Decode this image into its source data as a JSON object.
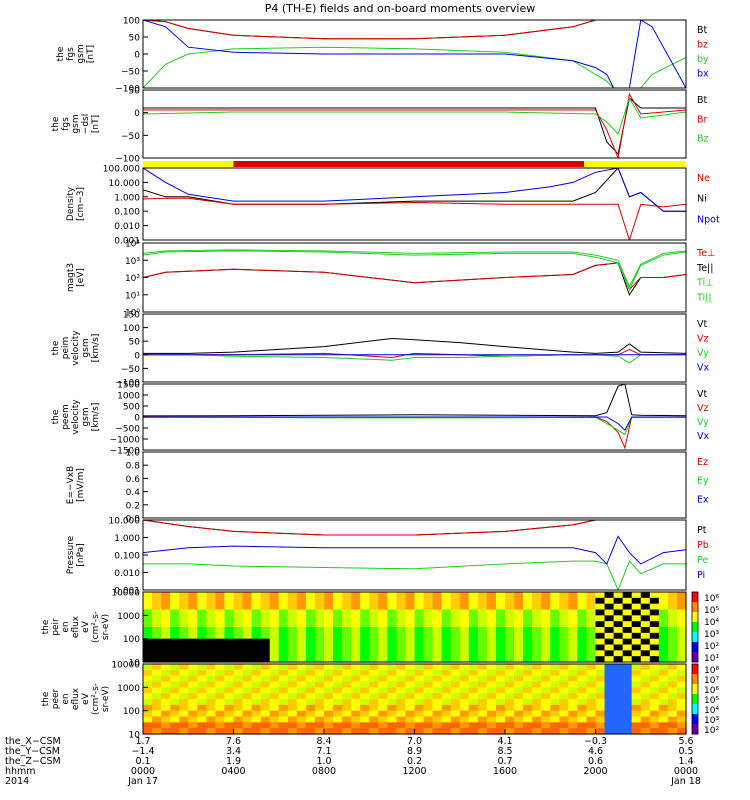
{
  "page": {
    "title": "P4 (TH-E) fields and on-board moments overview"
  },
  "colors": {
    "black": "#000000",
    "red": "#d40000",
    "green": "#22cc22",
    "blue": "#0000dd",
    "yellow": "#ffff00"
  },
  "chart_data": [
    {
      "id": "fgs",
      "type": "line",
      "ylabel_lines": [
        "the",
        "fgs",
        "gsm",
        "[nT]"
      ],
      "ylim": [
        -100,
        100
      ],
      "y_ticks": [
        "100",
        "50",
        "0",
        "−50",
        "−100"
      ],
      "legend": [
        {
          "name": "Bt",
          "color": "#000000"
        },
        {
          "name": "bz",
          "color": "#d40000"
        },
        {
          "name": "by",
          "color": "#22cc22"
        },
        {
          "name": "bx",
          "color": "#0000dd"
        }
      ],
      "x_hours": [
        0,
        1,
        2,
        4,
        8,
        12,
        16,
        19,
        20,
        20.5,
        20.8,
        21,
        21.3,
        21.5,
        22,
        22.5,
        24
      ],
      "series": [
        {
          "name": "Bt",
          "values": [
            100,
            95,
            75,
            55,
            45,
            45,
            55,
            80,
            100,
            100,
            100,
            100,
            100,
            100,
            100,
            100,
            100
          ]
        },
        {
          "name": "bz",
          "values": [
            100,
            95,
            75,
            55,
            45,
            45,
            55,
            80,
            100,
            100,
            100,
            100,
            100,
            100,
            100,
            100,
            100
          ]
        },
        {
          "name": "by",
          "values": [
            -100,
            -30,
            0,
            15,
            20,
            15,
            5,
            -20,
            -60,
            -80,
            -100,
            -100,
            -100,
            -100,
            -100,
            -60,
            -10
          ]
        },
        {
          "name": "bx",
          "values": [
            100,
            80,
            20,
            5,
            0,
            0,
            0,
            -20,
            -40,
            -60,
            -100,
            -100,
            -100,
            -100,
            100,
            80,
            -100
          ]
        }
      ]
    },
    {
      "id": "fgs_dsl",
      "type": "line",
      "ylabel_lines": [
        "the",
        "fgs",
        "gsm",
        "−dsl",
        "[nT]"
      ],
      "ylim": [
        -120,
        50
      ],
      "y_ticks": [
        "50",
        "0",
        "−50",
        "−100"
      ],
      "legend": [
        {
          "name": "Bt",
          "color": "#000000"
        },
        {
          "name": "Br",
          "color": "#d40000"
        },
        {
          "name": "Bz",
          "color": "#22cc22"
        }
      ],
      "x_hours": [
        0,
        4,
        8,
        12,
        16,
        20,
        20.5,
        21,
        21.5,
        22,
        24
      ],
      "series": [
        {
          "name": "Bt",
          "values": [
            5,
            5,
            5,
            5,
            5,
            5,
            -80,
            -110,
            30,
            5,
            5
          ]
        },
        {
          "name": "Br",
          "values": [
            0,
            0,
            0,
            0,
            0,
            0,
            -50,
            -120,
            40,
            -10,
            0
          ]
        },
        {
          "name": "Bz",
          "values": [
            -10,
            -5,
            -5,
            -5,
            -5,
            -10,
            -30,
            -60,
            30,
            -20,
            -5
          ]
        }
      ]
    },
    {
      "id": "density",
      "type": "line",
      "ylabel_lines": [
        "Density",
        "[cm−3]"
      ],
      "log": true,
      "ylim": [
        0.001,
        100
      ],
      "y_ticks": [
        "100.000",
        "10.000",
        "1.000",
        "0.100",
        "0.010",
        "0.001"
      ],
      "legend": [
        {
          "name": "Ne",
          "color": "#d40000"
        },
        {
          "name": "Ni",
          "color": "#000000"
        },
        {
          "name": "Npot",
          "color": "#0000dd"
        }
      ],
      "x_hours": [
        0,
        1,
        2,
        4,
        8,
        12,
        16,
        18,
        19,
        20,
        21,
        21.5,
        22,
        23,
        24
      ],
      "series": [
        {
          "name": "Ni",
          "values": [
            3,
            1,
            1,
            0.3,
            0.3,
            0.5,
            0.5,
            0.5,
            0.5,
            2,
            100,
            1,
            2,
            0.1,
            0.1
          ]
        },
        {
          "name": "Ne",
          "values": [
            0.7,
            0.8,
            0.8,
            0.3,
            0.3,
            0.4,
            0.3,
            0.3,
            0.3,
            0.3,
            0.3,
            0.001,
            0.3,
            0.2,
            0.3
          ]
        },
        {
          "name": "Npot",
          "values": [
            100,
            10,
            1.5,
            0.5,
            0.5,
            1,
            2,
            5,
            10,
            50,
            100,
            1,
            2,
            0.1,
            0.1
          ]
        }
      ]
    },
    {
      "id": "temperature",
      "type": "line",
      "ylabel_lines": [
        "magt3",
        "[eV]"
      ],
      "log": true,
      "ylim": [
        1,
        10000
      ],
      "y_ticks": [
        "10⁴",
        "10³",
        "10²",
        "10¹",
        "10⁰"
      ],
      "legend": [
        {
          "name": "Te⊥",
          "color": "#d40000"
        },
        {
          "name": "Te||",
          "color": "#000000"
        },
        {
          "name": "Ti⊥",
          "color": "#22cc22"
        },
        {
          "name": "Ti||",
          "color": "#22cc22"
        }
      ],
      "x_hours": [
        0,
        1,
        4,
        8,
        12,
        16,
        19,
        20,
        21,
        21.5,
        22,
        23,
        24
      ],
      "series": [
        {
          "name": "Te||",
          "values": [
            100,
            200,
            300,
            200,
            50,
            100,
            150,
            500,
            700,
            10,
            100,
            100,
            150
          ]
        },
        {
          "name": "Te⊥",
          "values": [
            100,
            200,
            300,
            200,
            50,
            100,
            150,
            500,
            700,
            20,
            100,
            100,
            150
          ]
        },
        {
          "name": "Ti⊥",
          "values": [
            2000,
            3000,
            3500,
            3000,
            2000,
            2500,
            2500,
            1500,
            700,
            20,
            500,
            2000,
            3000
          ]
        },
        {
          "name": "Ti||",
          "values": [
            2500,
            3500,
            4000,
            3500,
            2500,
            3000,
            3000,
            2000,
            1000,
            30,
            600,
            2500,
            3500
          ]
        }
      ]
    },
    {
      "id": "peim_velocity",
      "type": "line",
      "ylabel_lines": [
        "the",
        "peim",
        "velocity",
        "gsm",
        "[km/s]"
      ],
      "ylim": [
        -100,
        150
      ],
      "y_ticks": [
        "150",
        "100",
        "50",
        "0",
        "−50",
        "−100"
      ],
      "legend": [
        {
          "name": "Vt",
          "color": "#000000"
        },
        {
          "name": "Vz",
          "color": "#d40000"
        },
        {
          "name": "Vy",
          "color": "#22cc22"
        },
        {
          "name": "Vx",
          "color": "#0000dd"
        }
      ],
      "x_hours": [
        0,
        2,
        4,
        8,
        11,
        12,
        14,
        16,
        19,
        20,
        21,
        21.5,
        22,
        24
      ],
      "series": [
        {
          "name": "Vt",
          "values": [
            5,
            5,
            10,
            30,
            60,
            55,
            45,
            30,
            10,
            5,
            10,
            40,
            10,
            5
          ]
        },
        {
          "name": "Vz",
          "values": [
            0,
            0,
            0,
            5,
            -10,
            5,
            0,
            -5,
            0,
            0,
            0,
            20,
            0,
            0
          ]
        },
        {
          "name": "Vy",
          "values": [
            0,
            0,
            -5,
            -10,
            -20,
            -10,
            -10,
            -5,
            0,
            0,
            -5,
            -30,
            0,
            0
          ]
        },
        {
          "name": "Vx",
          "values": [
            0,
            0,
            0,
            0,
            0,
            0,
            0,
            0,
            0,
            0,
            0,
            0,
            0,
            0
          ]
        }
      ]
    },
    {
      "id": "peem_velocity",
      "type": "line",
      "ylabel_lines": [
        "the",
        "peem",
        "velocity",
        "gsm",
        "[km/s]"
      ],
      "ylim": [
        -1500,
        1500
      ],
      "y_ticks": [
        "1500",
        "1000",
        "500",
        "0",
        "−500",
        "−1000",
        "−1500"
      ],
      "legend": [
        {
          "name": "Vt",
          "color": "#000000"
        },
        {
          "name": "Vz",
          "color": "#d40000"
        },
        {
          "name": "Vy",
          "color": "#22cc22"
        },
        {
          "name": "Vx",
          "color": "#0000dd"
        }
      ],
      "x_hours": [
        0,
        4,
        8,
        12,
        16,
        20,
        20.5,
        21,
        21.3,
        21.6,
        22,
        24
      ],
      "series": [
        {
          "name": "Vt",
          "values": [
            50,
            60,
            80,
            100,
            80,
            60,
            200,
            1400,
            1500,
            100,
            80,
            60
          ]
        },
        {
          "name": "Vz",
          "values": [
            0,
            0,
            0,
            0,
            0,
            0,
            -200,
            -700,
            -1400,
            0,
            0,
            0
          ]
        },
        {
          "name": "Vy",
          "values": [
            -20,
            -20,
            -30,
            -40,
            -30,
            -20,
            -300,
            -600,
            -800,
            -20,
            -20,
            -20
          ]
        },
        {
          "name": "Vx",
          "values": [
            0,
            0,
            0,
            0,
            0,
            0,
            0,
            -300,
            -600,
            0,
            0,
            0
          ]
        }
      ]
    },
    {
      "id": "efield",
      "type": "line",
      "ylabel_lines": [
        "E=−VxB",
        "[mV/m]"
      ],
      "ylim": [
        0,
        1
      ],
      "y_ticks": [
        "1.0",
        "0.8",
        "0.6",
        "0.4",
        "0.2",
        "0.0"
      ],
      "legend": [
        {
          "name": "Ez",
          "color": "#d40000"
        },
        {
          "name": "Ey",
          "color": "#22cc22"
        },
        {
          "name": "Ex",
          "color": "#0000dd"
        }
      ],
      "series": []
    },
    {
      "id": "pressure",
      "type": "line",
      "ylabel_lines": [
        "Pressure",
        "[nPa]"
      ],
      "log": true,
      "ylim": [
        0.0005,
        10
      ],
      "y_ticks": [
        "10.000",
        "1.000",
        "0.100",
        "0.010",
        "0.001"
      ],
      "legend": [
        {
          "name": "Pt",
          "color": "#000000"
        },
        {
          "name": "Pb",
          "color": "#d40000"
        },
        {
          "name": "Pe",
          "color": "#22cc22"
        },
        {
          "name": "Pi",
          "color": "#0000dd"
        }
      ],
      "x_hours": [
        0,
        2,
        4,
        8,
        12,
        16,
        19,
        20,
        20.5,
        21,
        21.5,
        22,
        23,
        24
      ],
      "series": [
        {
          "name": "Pt",
          "values": [
            10,
            4,
            2,
            1.2,
            1.2,
            2,
            5,
            10,
            10,
            10,
            10,
            10,
            10,
            10
          ]
        },
        {
          "name": "Pb",
          "values": [
            10,
            4,
            2,
            1.2,
            1.2,
            2,
            5,
            10,
            10,
            10,
            10,
            10,
            10,
            10
          ]
        },
        {
          "name": "Pe",
          "values": [
            0.02,
            0.02,
            0.015,
            0.012,
            0.01,
            0.02,
            0.03,
            0.03,
            0.02,
            0.0005,
            0.03,
            0.005,
            0.02,
            0.02
          ]
        },
        {
          "name": "Pi",
          "values": [
            0.1,
            0.2,
            0.25,
            0.2,
            0.2,
            0.2,
            0.2,
            0.1,
            0.02,
            1,
            0.1,
            0.02,
            0.1,
            0.15
          ]
        }
      ]
    },
    {
      "id": "peir_spec",
      "type": "heatmap",
      "ylabel_lines": [
        "the",
        "peir",
        "en",
        "eflux",
        "eV",
        "(cm²-s-",
        "sr-eV)"
      ],
      "y_ticks": [
        "10000",
        "1000",
        "100",
        "10"
      ],
      "colorbar_ticks": [
        "10⁶",
        "10⁵",
        "10⁴",
        "10³",
        "10²",
        "10¹"
      ]
    },
    {
      "id": "peer_spec",
      "type": "heatmap",
      "ylabel_lines": [
        "the",
        "peer",
        "en",
        "eflux",
        "eV",
        "(cm²-s-",
        "sr-eV)"
      ],
      "y_ticks": [
        "10000",
        "1000",
        "100",
        "10"
      ],
      "colorbar_ticks": [
        "10⁸",
        "10⁷",
        "10⁶",
        "10⁵",
        "10⁴",
        "10³",
        "10²"
      ]
    }
  ],
  "xaxis": {
    "row_labels": [
      "the_X−CSM",
      "the_Y−CSM",
      "the_Z−CSM",
      "hhmm",
      "2014"
    ],
    "ticks": [
      {
        "hour": 0,
        "x": "1.7",
        "y": "−1.4",
        "z": "0.1",
        "hhmm": "0000",
        "date": "Jan 17"
      },
      {
        "hour": 4,
        "x": "7.6",
        "y": "3.4",
        "z": "1.9",
        "hhmm": "0400",
        "date": ""
      },
      {
        "hour": 8,
        "x": "8.4",
        "y": "7.1",
        "z": "1.0",
        "hhmm": "0800",
        "date": ""
      },
      {
        "hour": 12,
        "x": "7.0",
        "y": "8.9",
        "z": "0.2",
        "hhmm": "1200",
        "date": ""
      },
      {
        "hour": 16,
        "x": "4.1",
        "y": "8.5",
        "z": "0.7",
        "hhmm": "1600",
        "date": ""
      },
      {
        "hour": 20,
        "x": "−0.3",
        "y": "4.6",
        "z": "0.6",
        "hhmm": "2000",
        "date": ""
      },
      {
        "hour": 24,
        "x": "5.6",
        "y": "0.5",
        "z": "1.4",
        "hhmm": "0000",
        "date": "Jan 18"
      }
    ]
  }
}
